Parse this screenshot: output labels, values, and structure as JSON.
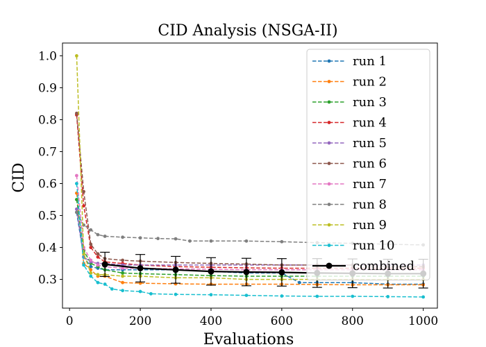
{
  "chart_data": {
    "type": "line",
    "title": "CID Analysis (NSGA-II)",
    "xlabel": "Evaluations",
    "ylabel": "CID",
    "xlim": [
      -20,
      1040
    ],
    "ylim": [
      0.21,
      1.04
    ],
    "xticks": [
      0,
      200,
      400,
      600,
      800,
      1000
    ],
    "xtick_labels": [
      "0",
      "200",
      "400",
      "600",
      "800",
      "1000"
    ],
    "yticks": [
      0.3,
      0.4,
      0.5,
      0.6,
      0.7,
      0.8,
      0.9,
      1.0
    ],
    "ytick_labels": [
      "0.3",
      "0.4",
      "0.5",
      "0.6",
      "0.7",
      "0.8",
      "0.9",
      "1.0"
    ],
    "grid": false,
    "legend_position": "top-right",
    "series": [
      {
        "name": "run 1",
        "color": "#1f77b4",
        "x": [
          20,
          40,
          60,
          80,
          100,
          150,
          200,
          300,
          400,
          500,
          600,
          650,
          700,
          800,
          900,
          1000
        ],
        "y": [
          0.51,
          0.37,
          0.34,
          0.335,
          0.33,
          0.33,
          0.33,
          0.33,
          0.325,
          0.32,
          0.32,
          0.29,
          0.29,
          0.29,
          0.285,
          0.285
        ]
      },
      {
        "name": "run 2",
        "color": "#ff7f0e",
        "x": [
          20,
          40,
          60,
          80,
          100,
          150,
          200,
          300,
          400,
          500,
          600,
          700,
          800,
          900,
          1000
        ],
        "y": [
          0.57,
          0.35,
          0.33,
          0.31,
          0.31,
          0.29,
          0.288,
          0.286,
          0.285,
          0.285,
          0.285,
          0.284,
          0.283,
          0.283,
          0.283
        ]
      },
      {
        "name": "run 3",
        "color": "#2ca02c",
        "x": [
          20,
          40,
          60,
          80,
          100,
          150,
          200,
          300,
          400,
          500,
          600,
          700,
          800,
          900,
          1000
        ],
        "y": [
          0.55,
          0.39,
          0.35,
          0.34,
          0.33,
          0.32,
          0.318,
          0.315,
          0.312,
          0.31,
          0.31,
          0.31,
          0.31,
          0.31,
          0.31
        ]
      },
      {
        "name": "run 4",
        "color": "#d62728",
        "x": [
          20,
          40,
          60,
          80,
          100,
          150,
          200,
          300,
          400,
          500,
          600,
          700,
          800,
          900,
          1000
        ],
        "y": [
          0.815,
          0.53,
          0.4,
          0.37,
          0.355,
          0.35,
          0.345,
          0.34,
          0.338,
          0.336,
          0.335,
          0.335,
          0.335,
          0.335,
          0.335
        ]
      },
      {
        "name": "run 5",
        "color": "#9467bd",
        "x": [
          20,
          40,
          60,
          80,
          100,
          150,
          200,
          300,
          400,
          500,
          600,
          700,
          800,
          900,
          1000
        ],
        "y": [
          0.52,
          0.37,
          0.355,
          0.35,
          0.35,
          0.345,
          0.345,
          0.345,
          0.345,
          0.345,
          0.345,
          0.345,
          0.345,
          0.345,
          0.345
        ]
      },
      {
        "name": "run 6",
        "color": "#8c564b",
        "x": [
          20,
          40,
          60,
          80,
          100,
          150,
          200,
          300,
          400,
          500,
          600,
          700,
          800,
          900,
          1000
        ],
        "y": [
          0.82,
          0.575,
          0.41,
          0.38,
          0.365,
          0.36,
          0.357,
          0.353,
          0.35,
          0.348,
          0.345,
          0.345,
          0.345,
          0.34,
          0.34
        ]
      },
      {
        "name": "run 7",
        "color": "#e377c2",
        "x": [
          20,
          40,
          60,
          80,
          100,
          150,
          200,
          300,
          400,
          500,
          600,
          700,
          800,
          900,
          1000
        ],
        "y": [
          0.625,
          0.4,
          0.36,
          0.345,
          0.34,
          0.335,
          0.335,
          0.333,
          0.332,
          0.33,
          0.33,
          0.33,
          0.33,
          0.33,
          0.33
        ]
      },
      {
        "name": "run 8",
        "color": "#7f7f7f",
        "x": [
          20,
          40,
          60,
          80,
          100,
          150,
          200,
          250,
          300,
          340,
          400,
          500,
          600,
          700,
          800,
          900,
          1000
        ],
        "y": [
          0.51,
          0.47,
          0.455,
          0.44,
          0.435,
          0.432,
          0.43,
          0.428,
          0.427,
          0.42,
          0.42,
          0.42,
          0.418,
          0.415,
          0.413,
          0.41,
          0.408
        ]
      },
      {
        "name": "run 9",
        "color": "#bcbd22",
        "x": [
          20,
          40,
          60,
          80,
          100,
          150,
          200,
          300,
          400,
          500,
          600,
          700,
          800,
          900,
          1000
        ],
        "y": [
          1.0,
          0.38,
          0.32,
          0.315,
          0.315,
          0.31,
          0.31,
          0.305,
          0.305,
          0.3,
          0.3,
          0.3,
          0.3,
          0.3,
          0.3
        ]
      },
      {
        "name": "run 10",
        "color": "#17becf",
        "x": [
          20,
          40,
          60,
          80,
          100,
          120,
          150,
          200,
          230,
          300,
          400,
          500,
          600,
          700,
          800,
          900,
          1000
        ],
        "y": [
          0.6,
          0.345,
          0.31,
          0.29,
          0.285,
          0.27,
          0.265,
          0.262,
          0.255,
          0.253,
          0.252,
          0.25,
          0.248,
          0.247,
          0.247,
          0.246,
          0.245
        ]
      }
    ],
    "combined": {
      "name": "combined",
      "color": "#000000",
      "x": [
        100,
        200,
        300,
        400,
        500,
        600,
        700,
        800,
        900,
        1000
      ],
      "y": [
        0.347,
        0.335,
        0.33,
        0.325,
        0.323,
        0.322,
        0.32,
        0.319,
        0.318,
        0.318
      ],
      "err": [
        0.038,
        0.043,
        0.042,
        0.043,
        0.043,
        0.043,
        0.045,
        0.045,
        0.045,
        0.045
      ]
    }
  }
}
